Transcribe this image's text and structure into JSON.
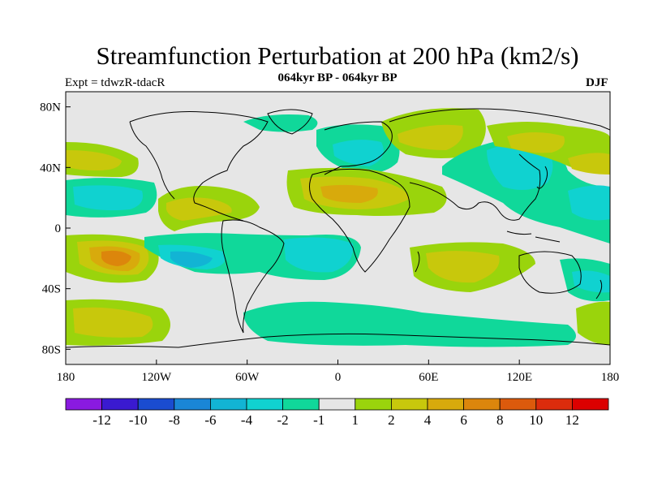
{
  "title": "Streamfunction Perturbation at 200 hPa (km2/s)",
  "subtitle": "064kyr BP - 064kyr BP",
  "experiment": "Expt = tdwzR-tdacR",
  "season": "DJF",
  "map": {
    "projection": "cylindrical equidistant",
    "lon_range": [
      -180,
      180
    ],
    "lat_range": [
      -90,
      90
    ],
    "lat_ticks": [
      {
        "value": 80,
        "label": "80N"
      },
      {
        "value": 40,
        "label": "40N"
      },
      {
        "value": 0,
        "label": "0"
      },
      {
        "value": -40,
        "label": "40S"
      },
      {
        "value": -80,
        "label": "80S"
      }
    ],
    "lon_ticks": [
      {
        "value": -180,
        "label": "180"
      },
      {
        "value": -120,
        "label": "120W"
      },
      {
        "value": -60,
        "label": "60W"
      },
      {
        "value": 0,
        "label": "0"
      },
      {
        "value": 60,
        "label": "60E"
      },
      {
        "value": 120,
        "label": "120E"
      },
      {
        "value": 180,
        "label": "180"
      }
    ],
    "background_color": "#e6e6e6"
  },
  "colorbar": {
    "colors": [
      "#8a1ae0",
      "#3a1ad0",
      "#1a4cd0",
      "#1a86d6",
      "#12b4d4",
      "#10d2d0",
      "#10d89a",
      "#e6e6e6",
      "#9ad40c",
      "#c8c80c",
      "#d8aa0c",
      "#dc860c",
      "#dc5a0c",
      "#dc2c0c",
      "#dc0000"
    ],
    "labels": [
      "-12",
      "-10",
      "-8",
      "-6",
      "-4",
      "-2",
      "-1",
      "1",
      "2",
      "4",
      "6",
      "8",
      "10",
      "12"
    ]
  }
}
